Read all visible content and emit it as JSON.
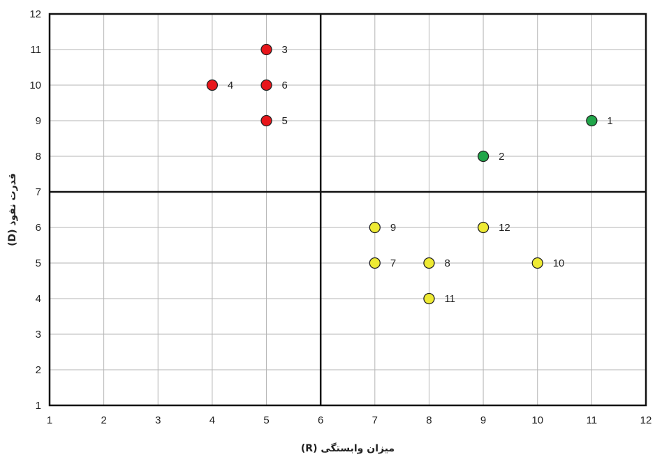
{
  "chart_data": {
    "type": "scatter",
    "xlabel": "میزان وابستگی (R)",
    "ylabel": "قدرت نفوذ (D)",
    "xlim": [
      1,
      12
    ],
    "ylim": [
      1,
      12
    ],
    "xticks": [
      "1",
      "2",
      "3",
      "4",
      "5",
      "6",
      "7",
      "8",
      "9",
      "10",
      "11",
      "12"
    ],
    "yticks": [
      "1",
      "2",
      "3",
      "4",
      "5",
      "6",
      "7",
      "8",
      "9",
      "10",
      "11",
      "12"
    ],
    "grid": true,
    "dividers": {
      "x": 6,
      "y": 7
    },
    "colors": {
      "red": "#e8161b",
      "green": "#21a64a",
      "yellow": "#eeea33",
      "grid": "#b5b5b5",
      "axis": "#111111"
    },
    "points": [
      {
        "label": "1",
        "x": 11,
        "y": 9,
        "color": "green"
      },
      {
        "label": "2",
        "x": 9,
        "y": 8,
        "color": "green"
      },
      {
        "label": "3",
        "x": 5,
        "y": 11,
        "color": "red"
      },
      {
        "label": "4",
        "x": 4,
        "y": 10,
        "color": "red"
      },
      {
        "label": "5",
        "x": 5,
        "y": 9,
        "color": "red"
      },
      {
        "label": "6",
        "x": 5,
        "y": 10,
        "color": "red"
      },
      {
        "label": "7",
        "x": 7,
        "y": 5,
        "color": "yellow"
      },
      {
        "label": "8",
        "x": 8,
        "y": 5,
        "color": "yellow"
      },
      {
        "label": "9",
        "x": 7,
        "y": 6,
        "color": "yellow"
      },
      {
        "label": "10",
        "x": 10,
        "y": 5,
        "color": "yellow"
      },
      {
        "label": "11",
        "x": 8,
        "y": 4,
        "color": "yellow"
      },
      {
        "label": "12",
        "x": 9,
        "y": 6,
        "color": "yellow"
      }
    ]
  }
}
